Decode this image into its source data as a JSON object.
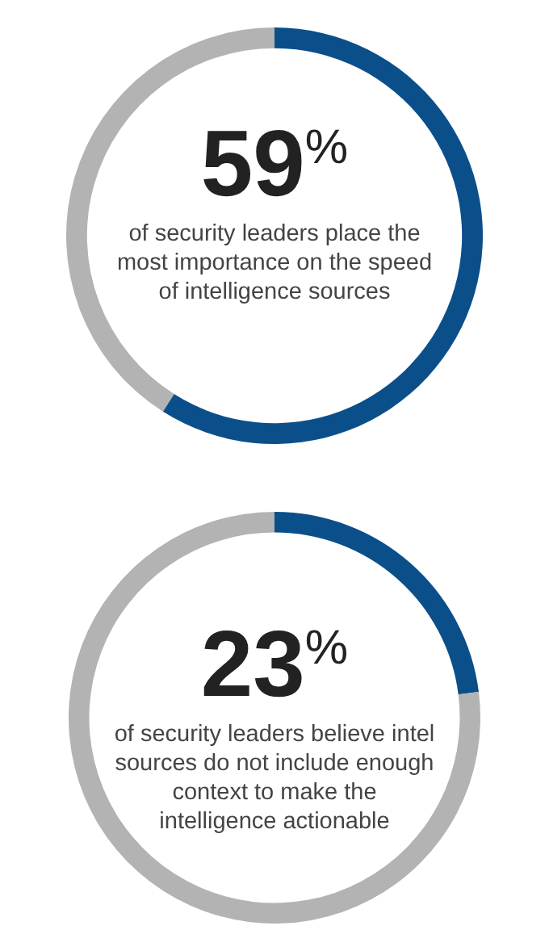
{
  "chart_data": [
    {
      "type": "donut",
      "categories": [
        null,
        null
      ],
      "values": [
        59,
        41
      ],
      "colors": [
        "#0b4f8a",
        "#b3b3b3"
      ],
      "value_labels": [
        "59%",
        null
      ],
      "annotations": [
        "of security leaders place the most importance on the speed of intelligence sources"
      ]
    },
    {
      "type": "donut",
      "categories": [
        null,
        null
      ],
      "values": [
        23,
        77
      ],
      "colors": [
        "#0b4f8a",
        "#b3b3b3"
      ],
      "value_labels": [
        "23%",
        null
      ],
      "annotations": [
        "of security leaders believe intel sources do not include enough context to make the intelligence actionable"
      ]
    }
  ]
}
